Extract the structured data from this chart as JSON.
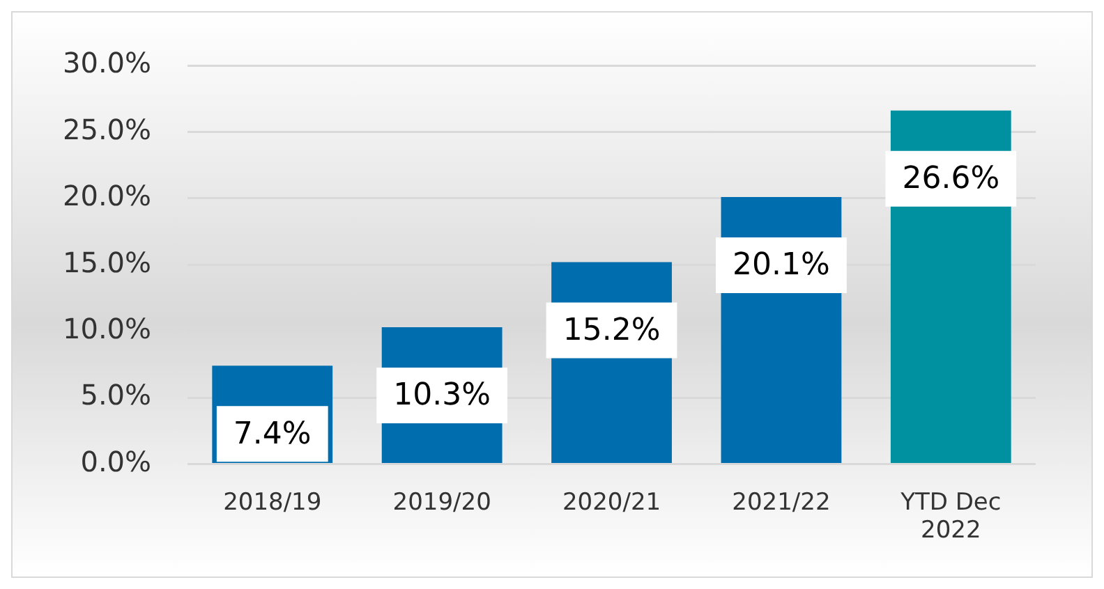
{
  "chart_data": {
    "type": "bar",
    "categories": [
      "2018/19",
      "2019/20",
      "2020/21",
      "2021/22",
      "YTD Dec 2022"
    ],
    "values": [
      7.4,
      10.3,
      15.2,
      20.1,
      26.6
    ],
    "colors": [
      "#006eae",
      "#006eae",
      "#006eae",
      "#006eae",
      "#0091a0"
    ],
    "value_labels": [
      "7.4%",
      "10.3%",
      "15.2%",
      "20.1%",
      "26.6%"
    ],
    "ylim": [
      0,
      30
    ],
    "yticks": [
      {
        "value": 0,
        "label": "0.0%"
      },
      {
        "value": 5,
        "label": "5.0%"
      },
      {
        "value": 10,
        "label": "10.0%"
      },
      {
        "value": 15,
        "label": "15.0%"
      },
      {
        "value": 20,
        "label": "20.0%"
      },
      {
        "value": 25,
        "label": "25.0%"
      },
      {
        "value": 30,
        "label": "30.0%"
      }
    ],
    "grid": "y"
  }
}
